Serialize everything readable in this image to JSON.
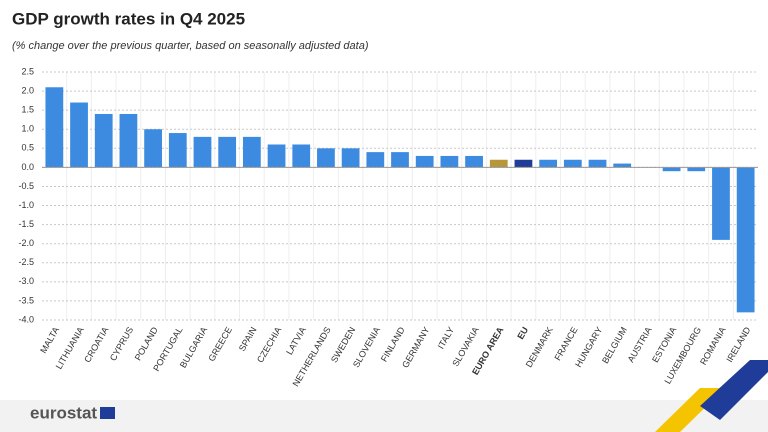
{
  "chart_data": {
    "type": "bar",
    "title": "GDP growth rates in Q4 2025",
    "subtitle": "(% change over the previous quarter, based on seasonally adjusted data)",
    "categories": [
      "MALTA",
      "LITHUANIA",
      "CROATIA",
      "CYPRUS",
      "POLAND",
      "PORTUGAL",
      "BULGARIA",
      "GREECE",
      "SPAIN",
      "CZECHIA",
      "LATVIA",
      "NETHERLANDS",
      "SWEDEN",
      "SLOVENIA",
      "FINLAND",
      "GERMANY",
      "ITALY",
      "SLOVAKIA",
      "EURO AREA",
      "EU",
      "DENMARK",
      "FRANCE",
      "HUNGARY",
      "BELGIUM",
      "AUSTRIA",
      "ESTONIA",
      "LUXEMBOURG",
      "ROMANIA",
      "IRELAND"
    ],
    "values": [
      2.1,
      1.7,
      1.4,
      1.4,
      1.0,
      0.9,
      0.8,
      0.8,
      0.8,
      0.6,
      0.6,
      0.5,
      0.5,
      0.4,
      0.4,
      0.3,
      0.3,
      0.3,
      0.2,
      0.2,
      0.2,
      0.2,
      0.2,
      0.1,
      0.0,
      -0.1,
      -0.1,
      -1.9,
      -3.8
    ],
    "colors": [
      "#3d8be0",
      "#3d8be0",
      "#3d8be0",
      "#3d8be0",
      "#3d8be0",
      "#3d8be0",
      "#3d8be0",
      "#3d8be0",
      "#3d8be0",
      "#3d8be0",
      "#3d8be0",
      "#3d8be0",
      "#3d8be0",
      "#3d8be0",
      "#3d8be0",
      "#3d8be0",
      "#3d8be0",
      "#3d8be0",
      "#b8963a",
      "#1f3c98",
      "#3d8be0",
      "#3d8be0",
      "#3d8be0",
      "#3d8be0",
      "#3d8be0",
      "#3d8be0",
      "#3d8be0",
      "#3d8be0",
      "#3d8be0"
    ],
    "ylim": [
      -4.0,
      2.5
    ],
    "yticks": [
      2.5,
      {
        "value": 2,
        "label": "2.0"
      },
      1.5,
      {
        "value": 1,
        "label": "1.0"
      },
      0.5,
      {
        "value": 0,
        "label": "0.0"
      },
      -0.5,
      {
        "value": -1,
        "label": "-1.0"
      },
      -1.5,
      {
        "value": -2,
        "label": "-2.0"
      },
      -2.5,
      {
        "value": -3,
        "label": "-3.0"
      },
      -3.5,
      {
        "value": -4,
        "label": "-4.0"
      }
    ],
    "grid": true
  },
  "footer": {
    "logo": "eurostat"
  }
}
